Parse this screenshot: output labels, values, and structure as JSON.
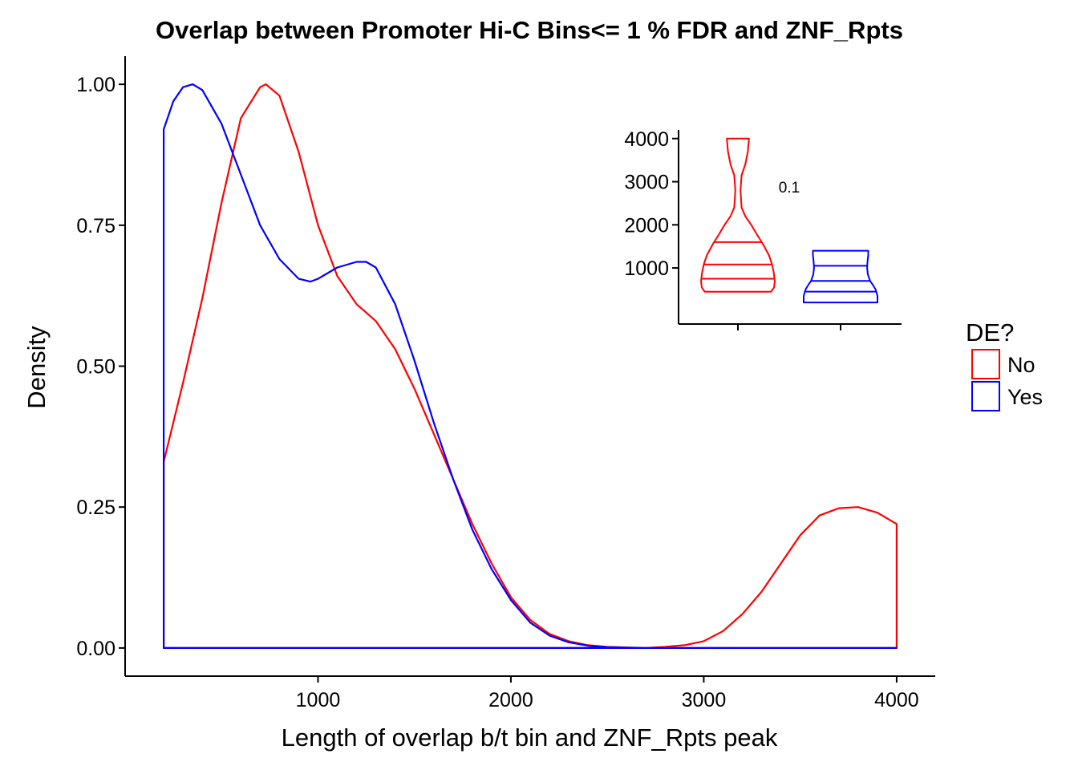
{
  "chart_data": [
    {
      "type": "area",
      "kind": "density",
      "title": "Overlap between Promoter Hi-C Bins<= 1 % FDR and ZNF_Rpts",
      "xlabel": "Length of overlap b/t bin and ZNF_Rpts peak",
      "ylabel": "Density",
      "xlim": [
        0,
        4200
      ],
      "ylim": [
        -0.05,
        1.05
      ],
      "x_ticks": [
        1000,
        2000,
        3000,
        4000
      ],
      "x_tick_labels": [
        "1000",
        "2000",
        "3000",
        "4000"
      ],
      "y_ticks": [
        0,
        0.25,
        0.5,
        0.75,
        1.0
      ],
      "y_tick_labels": [
        "0.00",
        "0.25",
        "0.50",
        "0.75",
        "1.00"
      ],
      "grid": false,
      "fill": "none",
      "legend": {
        "title": "DE?",
        "position": "right",
        "entries": [
          {
            "label": "No",
            "color": "#ff0000"
          },
          {
            "label": "Yes",
            "color": "#0000ff"
          }
        ]
      },
      "series": [
        {
          "color": "#ff0000",
          "x": [
            200,
            300,
            400,
            500,
            600,
            700,
            730,
            800,
            900,
            1000,
            1100,
            1200,
            1300,
            1400,
            1500,
            1600,
            1700,
            1800,
            1900,
            2000,
            2100,
            2200,
            2300,
            2400,
            2500,
            2600,
            2700,
            2800,
            2900,
            3000,
            3100,
            3200,
            3300,
            3400,
            3500,
            3600,
            3700,
            3800,
            3900,
            4000
          ],
          "y": [
            0.33,
            0.47,
            0.62,
            0.79,
            0.94,
            0.995,
            1.0,
            0.98,
            0.88,
            0.75,
            0.66,
            0.61,
            0.58,
            0.53,
            0.46,
            0.38,
            0.3,
            0.22,
            0.15,
            0.09,
            0.05,
            0.025,
            0.012,
            0.005,
            0.002,
            0.001,
            0.0,
            0.002,
            0.005,
            0.012,
            0.03,
            0.06,
            0.1,
            0.15,
            0.2,
            0.235,
            0.248,
            0.25,
            0.24,
            0.22
          ]
        },
        {
          "color": "#0000ff",
          "x": [
            200,
            250,
            300,
            350,
            400,
            450,
            500,
            600,
            700,
            800,
            900,
            960,
            1000,
            1100,
            1200,
            1250,
            1300,
            1400,
            1500,
            1600,
            1700,
            1800,
            1900,
            2000,
            2100,
            2200,
            2300,
            2400,
            2500,
            2600,
            2700,
            2800,
            3000,
            3500,
            4000
          ],
          "y": [
            0.92,
            0.97,
            0.995,
            1.0,
            0.99,
            0.96,
            0.93,
            0.84,
            0.75,
            0.69,
            0.655,
            0.65,
            0.655,
            0.675,
            0.685,
            0.685,
            0.675,
            0.61,
            0.51,
            0.4,
            0.3,
            0.21,
            0.14,
            0.085,
            0.045,
            0.022,
            0.01,
            0.004,
            0.0015,
            0.0005,
            0.0,
            0.0,
            0.0,
            0.0,
            0.0
          ]
        }
      ]
    },
    {
      "type": "violin",
      "position": "top-right inset",
      "ylim": [
        -300,
        4200
      ],
      "y_ticks": [
        1000,
        2000,
        3000,
        4000
      ],
      "y_tick_labels": [
        "1000",
        "2000",
        "3000",
        "4000"
      ],
      "annotation": "0.1",
      "groups": [
        {
          "color": "#ff0000",
          "min": 450,
          "max": 4000,
          "quantiles": [
            750,
            1080,
            1600
          ],
          "profile": [
            {
              "y": 450,
              "w": 0.9
            },
            {
              "y": 550,
              "w": 0.98
            },
            {
              "y": 700,
              "w": 1.0
            },
            {
              "y": 900,
              "w": 0.97
            },
            {
              "y": 1100,
              "w": 0.92
            },
            {
              "y": 1300,
              "w": 0.84
            },
            {
              "y": 1550,
              "w": 0.68
            },
            {
              "y": 1800,
              "w": 0.5
            },
            {
              "y": 2000,
              "w": 0.36
            },
            {
              "y": 2200,
              "w": 0.2
            },
            {
              "y": 2400,
              "w": 0.1
            },
            {
              "y": 2800,
              "w": 0.07
            },
            {
              "y": 3150,
              "w": 0.1
            },
            {
              "y": 3400,
              "w": 0.2
            },
            {
              "y": 3700,
              "w": 0.27
            },
            {
              "y": 4000,
              "w": 0.3
            }
          ]
        },
        {
          "color": "#0000ff",
          "min": 200,
          "max": 1400,
          "quantiles": [
            450,
            700,
            1050
          ],
          "profile": [
            {
              "y": 200,
              "w": 1.0
            },
            {
              "y": 350,
              "w": 1.0
            },
            {
              "y": 500,
              "w": 0.95
            },
            {
              "y": 600,
              "w": 0.88
            },
            {
              "y": 700,
              "w": 0.8
            },
            {
              "y": 850,
              "w": 0.74
            },
            {
              "y": 1000,
              "w": 0.72
            },
            {
              "y": 1150,
              "w": 0.73
            },
            {
              "y": 1300,
              "w": 0.75
            },
            {
              "y": 1400,
              "w": 0.75
            }
          ]
        }
      ]
    }
  ]
}
